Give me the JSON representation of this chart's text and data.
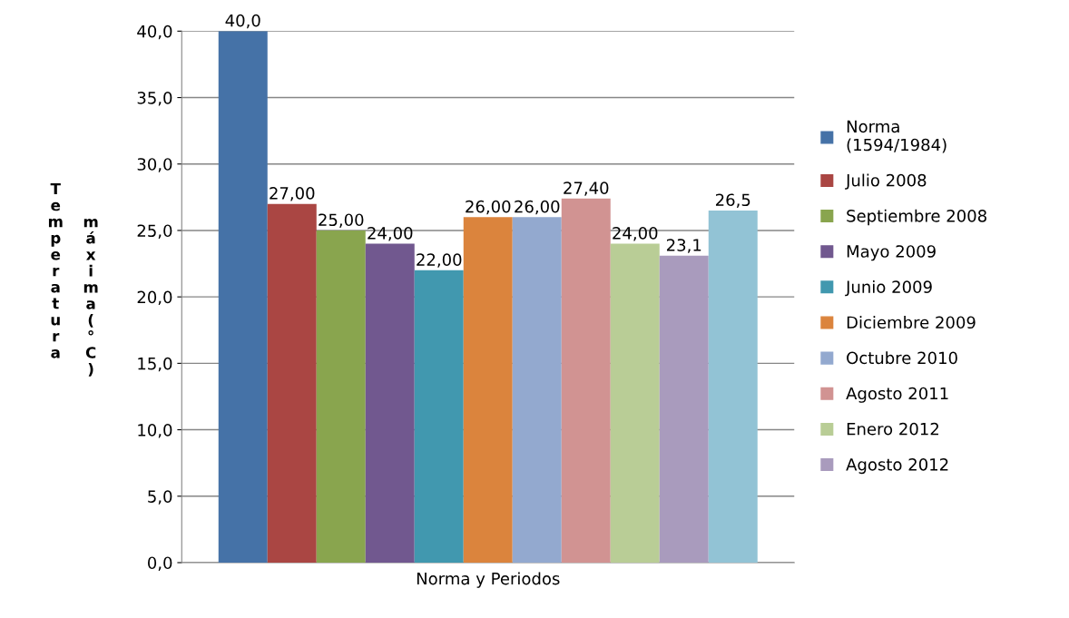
{
  "chart_data": {
    "type": "bar",
    "xlabel": "Norma y Periodos",
    "ylabel": "Temperatura máxima (°C)",
    "categories": [
      null
    ],
    "ylim": [
      0,
      40
    ],
    "yticks": [
      {
        "value": 0,
        "label": "0,0"
      },
      {
        "value": 5,
        "label": "5,0"
      },
      {
        "value": 10,
        "label": "10,0"
      },
      {
        "value": 15,
        "label": "15,0"
      },
      {
        "value": 20,
        "label": "20,0"
      },
      {
        "value": 25,
        "label": "25,0"
      },
      {
        "value": 30,
        "label": "30,0"
      },
      {
        "value": 35,
        "label": "35,0"
      },
      {
        "value": 40,
        "label": "40,0"
      }
    ],
    "grid": "y",
    "legend": "right",
    "series": [
      {
        "name": "Norma\n(1594/1984)",
        "color": "#4572a7",
        "values": [
          40.0
        ],
        "value_labels": [
          "40,0"
        ]
      },
      {
        "name": "Julio 2008",
        "color": "#aa4643",
        "values": [
          27.0
        ],
        "value_labels": [
          "27,00"
        ]
      },
      {
        "name": "Septiembre 2008",
        "color": "#89a54e",
        "values": [
          25.0
        ],
        "value_labels": [
          "25,00"
        ]
      },
      {
        "name": "Mayo 2009",
        "color": "#71588f",
        "values": [
          24.0
        ],
        "value_labels": [
          "24,00"
        ]
      },
      {
        "name": "Junio 2009",
        "color": "#4198af",
        "values": [
          22.0
        ],
        "value_labels": [
          "22,00"
        ]
      },
      {
        "name": "Diciembre 2009",
        "color": "#db843d",
        "values": [
          26.0
        ],
        "value_labels": [
          "26,00"
        ]
      },
      {
        "name": "Octubre 2010",
        "color": "#93a9cf",
        "values": [
          26.0
        ],
        "value_labels": [
          "26,00"
        ]
      },
      {
        "name": "Agosto 2011",
        "color": "#d19392",
        "values": [
          27.4
        ],
        "value_labels": [
          "27,40"
        ]
      },
      {
        "name": "Enero 2012",
        "color": "#b9cd96",
        "values": [
          24.0
        ],
        "value_labels": [
          "24,00"
        ]
      },
      {
        "name": "Agosto 2012",
        "color": "#a99bbd",
        "values": [
          23.1
        ],
        "value_labels": [
          "23,1"
        ]
      },
      {
        "color": "#92c3d5",
        "values": [
          26.5
        ],
        "value_labels": [
          "26,5"
        ]
      }
    ]
  }
}
